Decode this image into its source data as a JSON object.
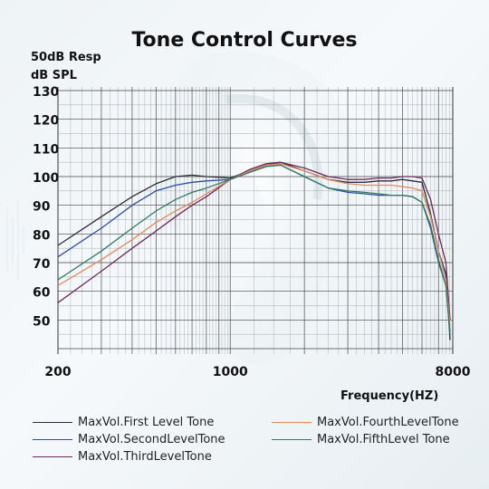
{
  "chart_data": {
    "type": "line",
    "title": "Tone Control Curves",
    "ylabel_lines": [
      "50dB Resp",
      "dB SPL"
    ],
    "xlabel": "Frequency(HZ)",
    "x_scale": "log",
    "xlim": [
      200,
      8000
    ],
    "ylim": [
      40,
      130
    ],
    "x_tick_labels": [
      "200",
      "1000",
      "8000"
    ],
    "x_ticks": [
      200,
      1000,
      8000
    ],
    "y_ticks": [
      50,
      60,
      70,
      80,
      90,
      100,
      110,
      120,
      130
    ],
    "grid": true,
    "legend_position": "bottom",
    "series": [
      {
        "name": "MaxVol.First Level Tone",
        "color": "#2b2b3a",
        "x": [
          200,
          300,
          400,
          500,
          600,
          700,
          800,
          1000,
          1200,
          1400,
          1600,
          2000,
          2500,
          3000,
          3500,
          4000,
          4500,
          5000,
          5500,
          6000,
          6500,
          7000,
          7500,
          7800
        ],
        "y": [
          76,
          86,
          93,
          97.5,
          100,
          100.5,
          100,
          99.5,
          102,
          104,
          105,
          102,
          99,
          98,
          98,
          98.5,
          98.5,
          99,
          98.5,
          98,
          87,
          74,
          66,
          43
        ]
      },
      {
        "name": "MaxVol.SecondLevelTone",
        "color": "#2e4fa0",
        "x": [
          200,
          300,
          400,
          500,
          600,
          700,
          800,
          1000,
          1200,
          1400,
          1600,
          2000,
          2500,
          3000,
          3500,
          4000,
          4500,
          5000,
          5500,
          6000,
          6500,
          7000,
          7500,
          7800
        ],
        "y": [
          72,
          82,
          90,
          95,
          97,
          98,
          98.5,
          99,
          101.5,
          103.5,
          104,
          100,
          96,
          94.5,
          94,
          93.5,
          93.5,
          93.5,
          93,
          91,
          83,
          71,
          62,
          46
        ]
      },
      {
        "name": "MaxVol.ThirdLevelTone",
        "color": "#6b2a5e",
        "x": [
          200,
          300,
          400,
          500,
          600,
          700,
          800,
          1000,
          1200,
          1400,
          1600,
          2000,
          2500,
          3000,
          3500,
          4000,
          4500,
          5000,
          5500,
          6000,
          6500,
          7000,
          7500,
          7800
        ],
        "y": [
          56,
          67,
          75,
          81,
          86,
          90,
          93,
          99,
          102.5,
          104.5,
          105,
          103,
          100,
          99,
          99,
          99.5,
          99.5,
          100,
          100,
          99.5,
          92,
          80,
          70,
          50
        ]
      },
      {
        "name": "MaxVol.FourthLevelTone",
        "color": "#e08a5a",
        "x": [
          200,
          300,
          400,
          500,
          600,
          700,
          800,
          1000,
          1200,
          1400,
          1600,
          2000,
          2500,
          3000,
          3500,
          4000,
          4500,
          5000,
          5500,
          6000,
          6500,
          7000,
          7500,
          7800
        ],
        "y": [
          62,
          71,
          78,
          84,
          88,
          91,
          94,
          99,
          102,
          104,
          104.5,
          102,
          99,
          97.5,
          97,
          97,
          97,
          96.5,
          96,
          95,
          86,
          74,
          64,
          48
        ]
      },
      {
        "name": "MaxVol.FifthLevel Tone",
        "color": "#2f7a63",
        "x": [
          200,
          300,
          400,
          500,
          600,
          700,
          800,
          1000,
          1200,
          1400,
          1600,
          2000,
          2500,
          3000,
          3500,
          4000,
          4500,
          5000,
          5500,
          6000,
          6500,
          7000,
          7500,
          7800
        ],
        "y": [
          64,
          74,
          82,
          88,
          92,
          94.5,
          96,
          99,
          101.5,
          103.5,
          104,
          100,
          96,
          95,
          94.5,
          94,
          93.5,
          93.5,
          93,
          91,
          82,
          70,
          62,
          45
        ]
      }
    ]
  },
  "legend": {
    "items": [
      {
        "label": "MaxVol.First Level Tone",
        "color": "#2b2b3a"
      },
      {
        "label": "MaxVol.SecondLevelTone",
        "color": "#2e4fa0"
      },
      {
        "label": "MaxVol.ThirdLevelTone",
        "color": "#6b2a5e"
      },
      {
        "label": "MaxVol.FourthLevelTone",
        "color": "#e08a5a"
      },
      {
        "label": "MaxVol.FifthLevel Tone",
        "color": "#2f7a63"
      }
    ]
  }
}
